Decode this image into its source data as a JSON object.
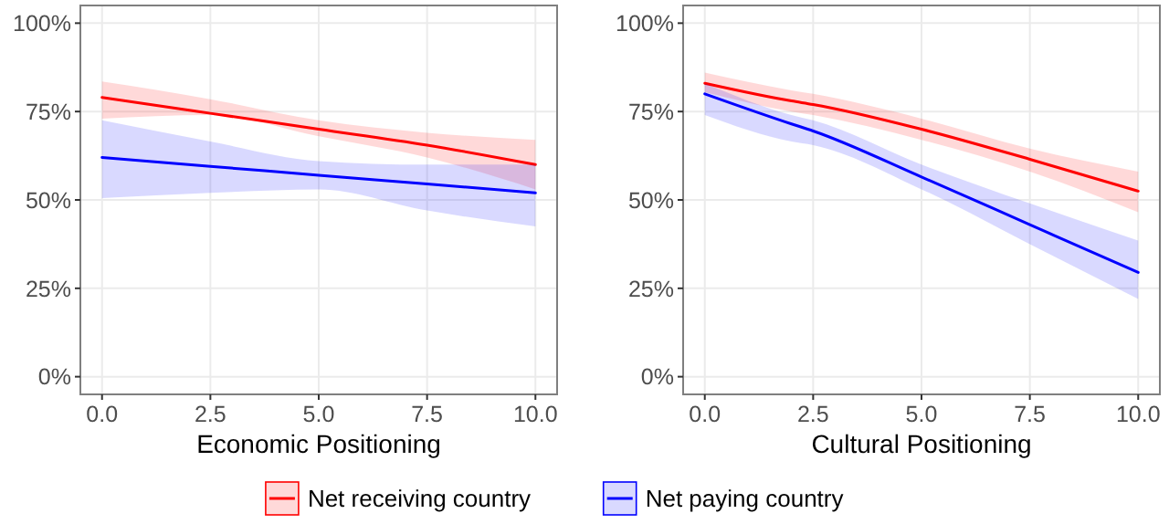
{
  "chart_data": [
    {
      "type": "line",
      "xlabel": "Economic Positioning",
      "x": [
        0,
        2.5,
        5,
        7.5,
        10
      ],
      "xlim": [
        -0.5,
        10.5
      ],
      "xticks": [
        {
          "value": 0,
          "label": "0.0"
        },
        {
          "value": 2.5,
          "label": "2.5"
        },
        {
          "value": 5,
          "label": "5.0"
        },
        {
          "value": 7.5,
          "label": "7.5"
        },
        {
          "value": 10,
          "label": "10.0"
        }
      ],
      "ylim": [
        -5,
        105
      ],
      "yticks": [
        {
          "value": 0,
          "label": "0%"
        },
        {
          "value": 25,
          "label": "25%"
        },
        {
          "value": 50,
          "label": "50%"
        },
        {
          "value": 75,
          "label": "75%"
        },
        {
          "value": 100,
          "label": "100%"
        }
      ],
      "grid": true,
      "legend": "bottom",
      "line_style": "solid",
      "series": [
        {
          "name": "Net receiving country",
          "color": "#ff0000",
          "values": [
            79,
            74.5,
            70,
            65.5,
            60
          ],
          "lower": [
            73,
            74,
            68,
            62,
            53
          ],
          "upper": [
            83.5,
            78.5,
            72.5,
            69,
            67
          ]
        },
        {
          "name": "Net paying country",
          "color": "#0000ff",
          "values": [
            62,
            59.5,
            57,
            54.5,
            52
          ],
          "lower": [
            50.5,
            52,
            53,
            47,
            42.5
          ],
          "upper": [
            72.5,
            66.5,
            61,
            60,
            60
          ]
        }
      ]
    },
    {
      "type": "line",
      "xlabel": "Cultural Positioning",
      "x": [
        0,
        2,
        2.5,
        5,
        7.5,
        10
      ],
      "xlim": [
        -0.5,
        10.5
      ],
      "xticks": [
        {
          "value": 0,
          "label": "0.0"
        },
        {
          "value": 2.5,
          "label": "2.5"
        },
        {
          "value": 5,
          "label": "5.0"
        },
        {
          "value": 7.5,
          "label": "7.5"
        },
        {
          "value": 10,
          "label": "10.0"
        }
      ],
      "ylim": [
        -5,
        105
      ],
      "yticks": [
        {
          "value": 0,
          "label": "0%"
        },
        {
          "value": 25,
          "label": "25%"
        },
        {
          "value": 50,
          "label": "50%"
        },
        {
          "value": 75,
          "label": "75%"
        },
        {
          "value": 100,
          "label": "100%"
        }
      ],
      "grid": true,
      "line_style": "solid",
      "series": [
        {
          "color": "#ff0000",
          "values": [
            83,
            78,
            77,
            70,
            61.5,
            52.5
          ],
          "lower": [
            80.5,
            75,
            74,
            67,
            58,
            46.5
          ],
          "upper": [
            86,
            81,
            80,
            73,
            64.5,
            58
          ]
        },
        {
          "color": "#0000ff",
          "values": [
            80,
            71.5,
            69.5,
            56.5,
            43,
            29.5
          ],
          "lower": [
            74,
            66.5,
            65.5,
            53,
            37.5,
            22
          ],
          "upper": [
            83,
            74,
            72.5,
            60,
            49,
            38.5
          ]
        }
      ]
    }
  ]
}
